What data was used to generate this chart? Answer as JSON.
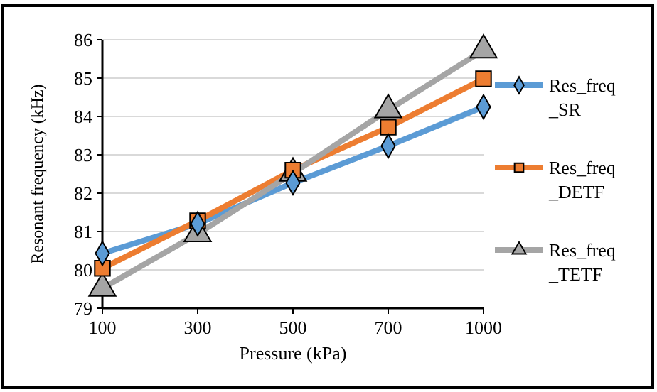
{
  "chart_data": {
    "type": "line",
    "xlabel": "Pressure (kPa)",
    "ylabel": "Resonant frequency (kHz)",
    "categories": [
      "100",
      "300",
      "500",
      "700",
      "1000"
    ],
    "ylim": [
      79,
      86
    ],
    "yticks": [
      79,
      80,
      81,
      82,
      83,
      84,
      85,
      86
    ],
    "grid": "y",
    "legend": "right",
    "line_style": "solid",
    "series": [
      {
        "name": "Res_freq_SR",
        "color": "#5b9bd5",
        "marker": "diamond",
        "values": [
          80.43,
          81.2,
          82.27,
          83.23,
          84.25
        ]
      },
      {
        "name": "Res_freq_DETF",
        "color": "#ed7d31",
        "marker": "square",
        "values": [
          80.04,
          81.28,
          82.6,
          83.72,
          84.98
        ]
      },
      {
        "name": "Res_freq_TETF",
        "color": "#a5a5a5",
        "marker": "triangle",
        "values": [
          79.52,
          80.94,
          82.52,
          84.17,
          85.73
        ]
      }
    ]
  }
}
